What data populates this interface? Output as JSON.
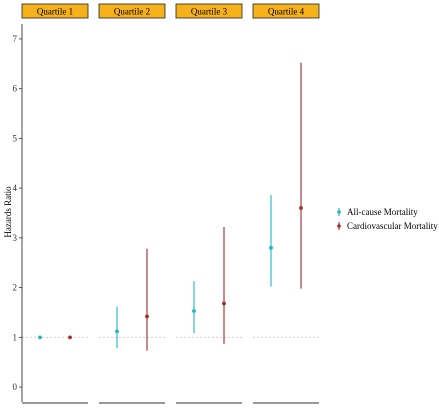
{
  "colors": {
    "all_cause": "#1fb7c1",
    "cardiovascular": "#a02b2b",
    "strip_fill": "#f5b21a",
    "strip_border": "#222222",
    "reference_line": "#c8c8c8",
    "axis": "#333333"
  },
  "chart_data": {
    "type": "scatter",
    "subtype": "faceted forest plot (point estimate with confidence interval)",
    "ylabel": "Hazards Ratio",
    "ylim": [
      -0.3,
      7.3
    ],
    "y_ticks": [
      "0",
      "1",
      "2",
      "3",
      "4",
      "5",
      "6",
      "7"
    ],
    "reference_line": 1,
    "grid": false,
    "legend_position": "right",
    "facets": [
      {
        "label": "Quartile 1"
      },
      {
        "label": "Quartile 2"
      },
      {
        "label": "Quartile 3"
      },
      {
        "label": "Quartile 4"
      }
    ],
    "series": [
      {
        "name": "All-cause Mortality",
        "color": "#1fb7c1",
        "points": [
          {
            "facet": "Quartile 1",
            "estimate": 1.0,
            "lower": 1.0,
            "upper": 1.0
          },
          {
            "facet": "Quartile 2",
            "estimate": 1.12,
            "lower": 0.78,
            "upper": 1.62
          },
          {
            "facet": "Quartile 3",
            "estimate": 1.53,
            "lower": 1.08,
            "upper": 2.13
          },
          {
            "facet": "Quartile 4",
            "estimate": 2.8,
            "lower": 2.02,
            "upper": 3.86
          }
        ]
      },
      {
        "name": "Cardiovascular Mortality",
        "color": "#a02b2b",
        "points": [
          {
            "facet": "Quartile 1",
            "estimate": 1.0,
            "lower": 1.0,
            "upper": 1.0
          },
          {
            "facet": "Quartile 2",
            "estimate": 1.42,
            "lower": 0.73,
            "upper": 2.78
          },
          {
            "facet": "Quartile 3",
            "estimate": 1.68,
            "lower": 0.87,
            "upper": 3.22
          },
          {
            "facet": "Quartile 4",
            "estimate": 3.6,
            "lower": 1.98,
            "upper": 6.52
          }
        ]
      }
    ]
  }
}
